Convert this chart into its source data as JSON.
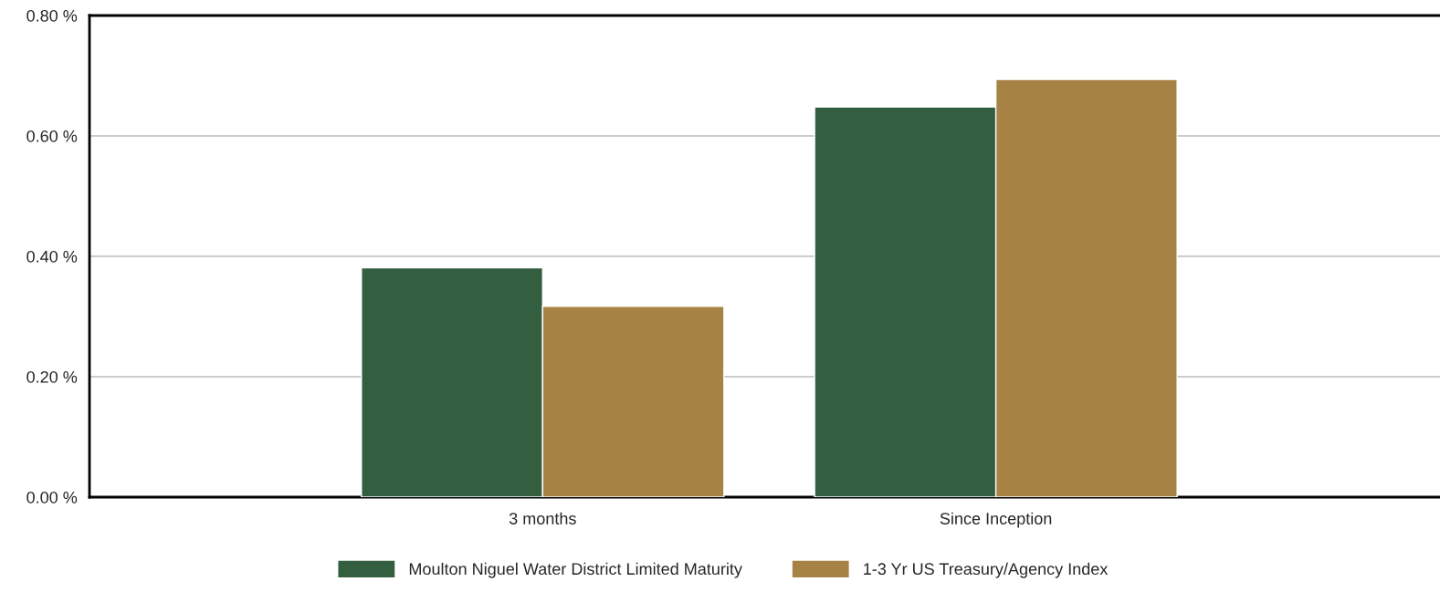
{
  "chart_data": {
    "type": "bar",
    "categories": [
      "3 months",
      "Since Inception"
    ],
    "series": [
      {
        "name": "Moulton Niguel Water District Limited Maturity",
        "color": "#335e3f",
        "values": [
          0.381,
          0.648
        ]
      },
      {
        "name": "1-3 Yr US Treasury/Agency Index",
        "color": "#a68244",
        "values": [
          0.317,
          0.694
        ]
      }
    ],
    "ylim": [
      0,
      0.8
    ],
    "yticks": [
      {
        "value": 0,
        "label": "0.00 %"
      },
      {
        "value": 0.2,
        "label": "0.20 %"
      },
      {
        "value": 0.4,
        "label": "0.40 %"
      },
      {
        "value": 0.6,
        "label": "0.60 %"
      },
      {
        "value": 0.8,
        "label": "0.80 %"
      }
    ],
    "grid": "y",
    "legend": "bottom"
  }
}
